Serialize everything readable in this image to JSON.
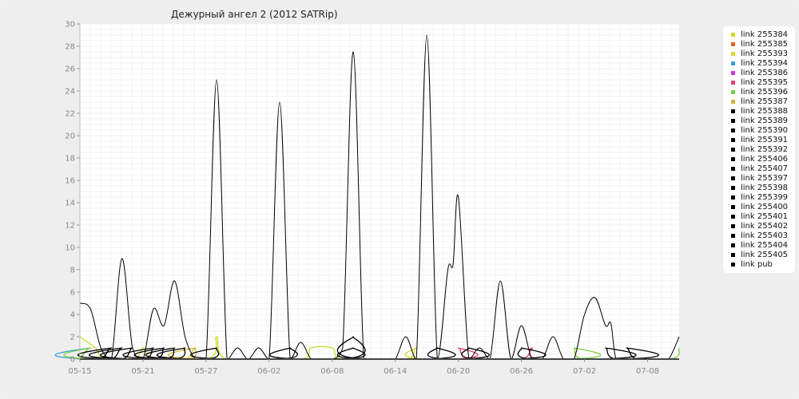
{
  "chart_data": {
    "type": "line",
    "title": "Дежурный ангел 2 (2012 SATRip)",
    "xlabel": "",
    "ylabel": "",
    "ylim": [
      0,
      30
    ],
    "xlim": [
      "05-15",
      "06-19"
    ],
    "yticks": [
      0,
      2,
      4,
      6,
      8,
      10,
      12,
      14,
      16,
      18,
      20,
      22,
      24,
      26,
      28,
      30
    ],
    "xticks": [
      "05-15",
      "05-21",
      "05-27",
      "06-02",
      "06-08",
      "06-14",
      "06-20",
      "06-26",
      "07-02",
      "07-08"
    ],
    "legend_position": "right",
    "grid": true,
    "series": [
      {
        "name": "link 255384",
        "color": "#c8dc28",
        "points": [
          [
            0,
            2
          ],
          [
            1.5,
            1
          ],
          [
            3,
            0
          ],
          [
            12,
            0
          ],
          [
            13,
            2
          ],
          [
            14,
            0
          ],
          [
            21,
            0
          ],
          [
            22,
            1
          ],
          [
            24,
            1
          ],
          [
            25,
            0
          ],
          [
            31,
            0
          ],
          [
            32,
            1
          ],
          [
            33,
            0
          ],
          [
            57,
            0
          ]
        ]
      },
      {
        "name": "link 255385",
        "color": "#e0662a",
        "points": [
          [
            0,
            0
          ],
          [
            57,
            0
          ]
        ]
      },
      {
        "name": "link 255393",
        "color": "#dcdc32",
        "points": [
          [
            0,
            0
          ],
          [
            5,
            0
          ],
          [
            6,
            1
          ],
          [
            7,
            0
          ],
          [
            10,
            0
          ],
          [
            11,
            1
          ],
          [
            12,
            0
          ],
          [
            57,
            0
          ]
        ]
      },
      {
        "name": "link 255394",
        "color": "#3c9ed2",
        "points": [
          [
            0,
            0
          ],
          [
            1,
            1
          ],
          [
            2,
            0
          ],
          [
            57,
            0
          ]
        ]
      },
      {
        "name": "link 255386",
        "color": "#c33ccf",
        "points": [
          [
            0,
            0
          ],
          [
            57,
            0
          ]
        ]
      },
      {
        "name": "link 255395",
        "color": "#e3407d",
        "points": [
          [
            0,
            0
          ],
          [
            35,
            0
          ],
          [
            36,
            1
          ],
          [
            37,
            0
          ],
          [
            42,
            0
          ],
          [
            43,
            1
          ],
          [
            44,
            0
          ],
          [
            57,
            0
          ]
        ]
      },
      {
        "name": "link 255396",
        "color": "#77d23c",
        "points": [
          [
            0,
            0
          ],
          [
            1,
            1
          ],
          [
            2,
            0
          ],
          [
            46,
            0
          ],
          [
            47,
            1
          ],
          [
            48,
            0
          ],
          [
            56,
            0
          ],
          [
            57,
            1
          ]
        ]
      },
      {
        "name": "link 255387",
        "color": "#d2b43c",
        "points": [
          [
            0,
            0
          ],
          [
            10,
            0
          ],
          [
            11,
            1
          ],
          [
            12,
            0
          ],
          [
            57,
            0
          ]
        ]
      },
      {
        "name": "link 255388",
        "color": "#000000",
        "points": [
          [
            0,
            0
          ],
          [
            2,
            0
          ],
          [
            3,
            1
          ],
          [
            4,
            0
          ],
          [
            57,
            0
          ]
        ]
      },
      {
        "name": "link 255389",
        "color": "#000000",
        "points": [
          [
            0,
            0
          ],
          [
            3,
            0
          ],
          [
            4,
            1
          ],
          [
            5,
            0
          ],
          [
            57,
            0
          ]
        ]
      },
      {
        "name": "link 255390",
        "color": "#000000",
        "points": [
          [
            0,
            0
          ],
          [
            4,
            0
          ],
          [
            5,
            1
          ],
          [
            6,
            0
          ],
          [
            57,
            0
          ]
        ]
      },
      {
        "name": "link 255391",
        "color": "#000000",
        "points": [
          [
            0,
            0
          ],
          [
            6,
            0
          ],
          [
            7,
            1
          ],
          [
            8,
            0
          ],
          [
            57,
            0
          ]
        ]
      },
      {
        "name": "link 255392",
        "color": "#000000",
        "points": [
          [
            0,
            0
          ],
          [
            7,
            0
          ],
          [
            8,
            1
          ],
          [
            9,
            0
          ],
          [
            57,
            0
          ]
        ]
      },
      {
        "name": "link 255406",
        "color": "#000000",
        "points": [
          [
            0,
            0
          ],
          [
            8,
            0
          ],
          [
            9,
            1
          ],
          [
            10,
            0
          ],
          [
            57,
            0
          ]
        ]
      },
      {
        "name": "link 255407",
        "color": "#000000",
        "points": [
          [
            0,
            0
          ],
          [
            9,
            0
          ],
          [
            10,
            1
          ],
          [
            11,
            0
          ],
          [
            57,
            0
          ]
        ]
      },
      {
        "name": "link 255397",
        "color": "#000000",
        "points": [
          [
            0,
            0
          ],
          [
            12,
            0
          ],
          [
            13,
            1
          ],
          [
            14,
            0
          ],
          [
            57,
            0
          ]
        ]
      },
      {
        "name": "link 255398",
        "color": "#000000",
        "points": [
          [
            0,
            0
          ],
          [
            19,
            0
          ],
          [
            20,
            1
          ],
          [
            21,
            0
          ],
          [
            57,
            0
          ]
        ]
      },
      {
        "name": "link 255399",
        "color": "#000000",
        "points": [
          [
            0,
            0
          ],
          [
            25,
            0
          ],
          [
            26,
            1
          ],
          [
            27,
            0
          ],
          [
            57,
            0
          ]
        ]
      },
      {
        "name": "link 255400",
        "color": "#000000",
        "points": [
          [
            0,
            0
          ],
          [
            25,
            0
          ],
          [
            26,
            2
          ],
          [
            27,
            0
          ],
          [
            57,
            0
          ]
        ]
      },
      {
        "name": "link 255401",
        "color": "#000000",
        "points": [
          [
            0,
            0
          ],
          [
            33,
            0
          ],
          [
            34,
            1
          ],
          [
            35,
            0
          ],
          [
            57,
            0
          ]
        ]
      },
      {
        "name": "link 255402",
        "color": "#000000",
        "points": [
          [
            0,
            0
          ],
          [
            36,
            0
          ],
          [
            37,
            1
          ],
          [
            38,
            0
          ],
          [
            57,
            0
          ]
        ]
      },
      {
        "name": "link 255403",
        "color": "#000000",
        "points": [
          [
            0,
            0
          ],
          [
            41,
            0
          ],
          [
            42,
            1
          ],
          [
            43,
            0
          ],
          [
            57,
            0
          ]
        ]
      },
      {
        "name": "link 255404",
        "color": "#000000",
        "points": [
          [
            0,
            0
          ],
          [
            49,
            0
          ],
          [
            50,
            1
          ],
          [
            51,
            0
          ],
          [
            57,
            0
          ]
        ]
      },
      {
        "name": "link 255405",
        "color": "#000000",
        "points": [
          [
            0,
            0
          ],
          [
            51,
            0
          ],
          [
            52,
            1
          ],
          [
            53,
            0
          ],
          [
            57,
            0
          ]
        ]
      },
      {
        "name": "link pub",
        "color": "#000000",
        "points": [
          [
            0,
            5
          ],
          [
            1,
            4.5
          ],
          [
            2,
            1
          ],
          [
            3,
            0
          ],
          [
            4,
            9
          ],
          [
            5,
            1
          ],
          [
            6,
            0
          ],
          [
            7,
            4.5
          ],
          [
            8,
            3
          ],
          [
            9,
            7
          ],
          [
            10,
            2
          ],
          [
            11,
            0
          ],
          [
            12,
            0
          ],
          [
            13,
            25
          ],
          [
            14,
            0
          ],
          [
            15,
            1
          ],
          [
            16,
            0
          ],
          [
            17,
            1
          ],
          [
            18,
            0
          ],
          [
            19,
            23
          ],
          [
            20,
            0
          ],
          [
            21,
            1.5
          ],
          [
            22,
            0
          ],
          [
            23,
            0
          ],
          [
            24,
            0
          ],
          [
            25,
            1
          ],
          [
            26,
            27.5
          ],
          [
            27,
            0
          ],
          [
            28,
            0
          ],
          [
            29,
            0
          ],
          [
            30,
            0
          ],
          [
            31,
            2
          ],
          [
            32,
            0
          ],
          [
            33,
            29
          ],
          [
            34,
            0
          ],
          [
            35,
            8
          ],
          [
            35.5,
            8.5
          ],
          [
            36,
            14.5
          ],
          [
            37,
            0
          ],
          [
            38,
            1
          ],
          [
            39,
            0
          ],
          [
            40,
            7
          ],
          [
            41,
            0
          ],
          [
            42,
            3
          ],
          [
            43,
            0
          ],
          [
            44,
            0
          ],
          [
            45,
            2
          ],
          [
            46,
            0
          ],
          [
            47,
            0
          ],
          [
            48,
            4
          ],
          [
            49,
            5.5
          ],
          [
            50,
            3
          ],
          [
            50.5,
            3.2
          ],
          [
            51,
            0
          ],
          [
            52,
            0
          ],
          [
            53,
            0
          ],
          [
            54,
            0
          ],
          [
            55,
            0
          ],
          [
            56,
            0
          ],
          [
            57,
            2
          ]
        ]
      }
    ]
  }
}
